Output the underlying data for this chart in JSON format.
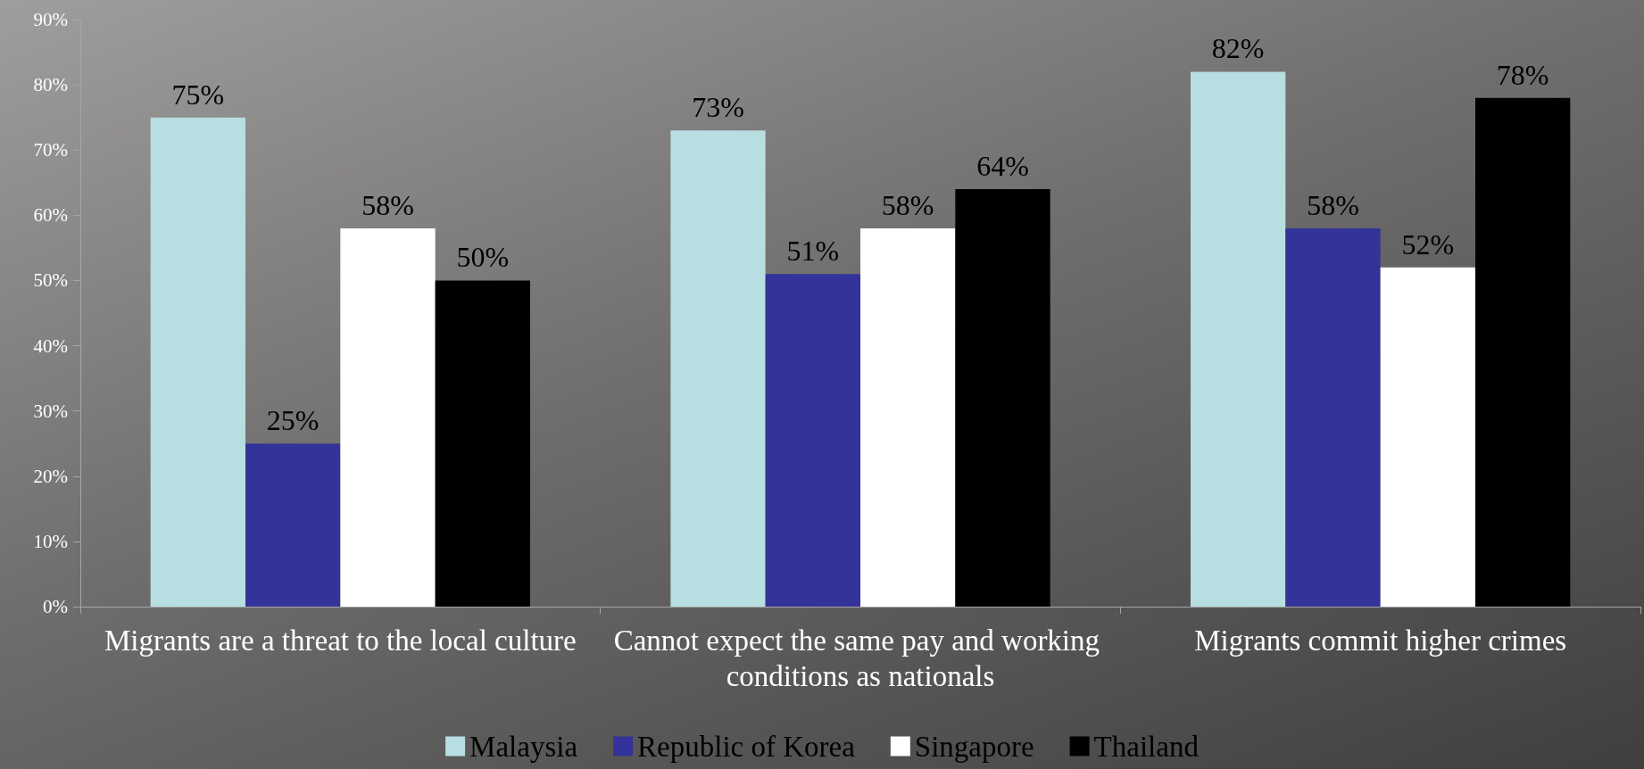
{
  "chart_data": {
    "type": "bar",
    "categories": [
      "Migrants are a threat to the local culture",
      "Cannot expect the same pay and working conditions as nationals",
      "Migrants commit higher crimes"
    ],
    "series": [
      {
        "name": "Malaysia",
        "color": "#b7dee0",
        "values": [
          75,
          73,
          82
        ],
        "value_labels": [
          "75%",
          "73%",
          "82%"
        ]
      },
      {
        "name": "Republic of Korea",
        "color": "#333399",
        "values": [
          25,
          51,
          58
        ],
        "value_labels": [
          "25%",
          "51%",
          "58%"
        ]
      },
      {
        "name": "Singapore",
        "color": "#ffffff",
        "values": [
          58,
          58,
          52
        ],
        "value_labels": [
          "58%",
          "58%",
          "52%"
        ]
      },
      {
        "name": "Thailand",
        "color": "#000000",
        "values": [
          50,
          64,
          78
        ],
        "value_labels": [
          "50%",
          "64%",
          "78%"
        ]
      }
    ],
    "ylim": [
      0,
      90
    ],
    "yticks": [
      {
        "value": 0,
        "label": "0%"
      },
      {
        "value": 10,
        "label": "10%"
      },
      {
        "value": 20,
        "label": "20%"
      },
      {
        "value": 30,
        "label": "30%"
      },
      {
        "value": 40,
        "label": "40%"
      },
      {
        "value": 50,
        "label": "50%"
      },
      {
        "value": 60,
        "label": "60%"
      },
      {
        "value": 70,
        "label": "70%"
      },
      {
        "value": 80,
        "label": "80%"
      },
      {
        "value": 90,
        "label": "90%"
      }
    ],
    "grid": false,
    "legend": "bottom"
  }
}
